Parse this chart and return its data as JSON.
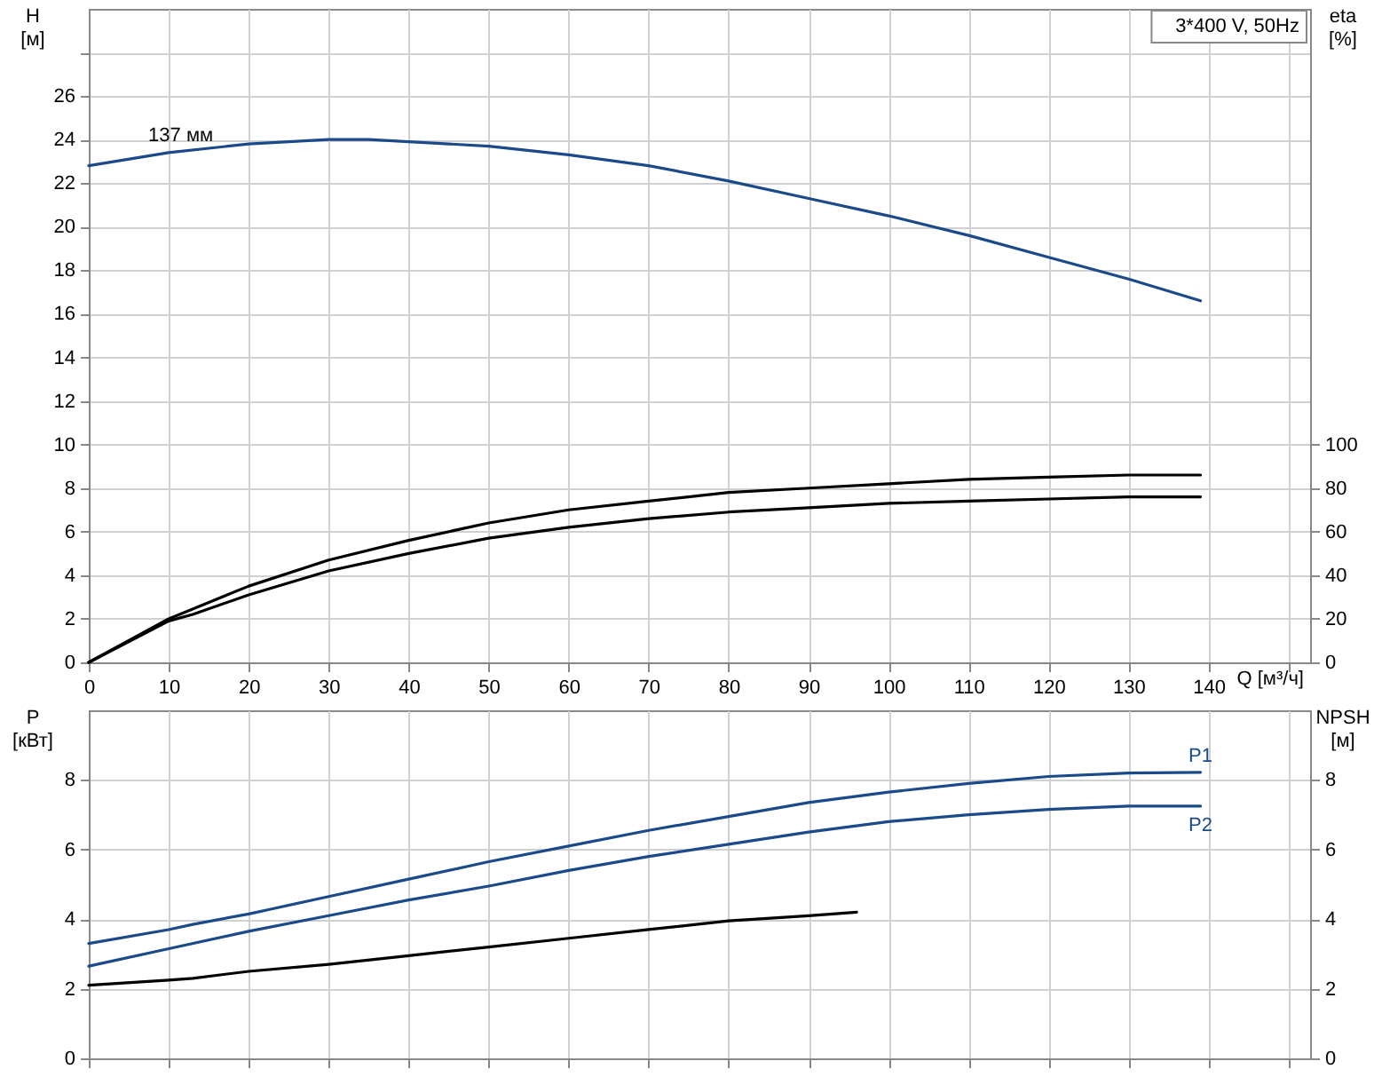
{
  "chart_data": [
    {
      "type": "line",
      "title": "3*400 V, 50Hz",
      "xlabel": "Q [м³/ч]",
      "ylabel": "H\n[м]",
      "y2label": "eta\n[%]",
      "xlim": [
        0,
        152.7
      ],
      "xticks": [
        0,
        10,
        20,
        30,
        40,
        50,
        60,
        70,
        80,
        90,
        100,
        110,
        120,
        130,
        140,
        {
          "value": 150,
          "label": null
        }
      ],
      "ylim": [
        0,
        30
      ],
      "yticks": [
        0,
        2,
        4,
        6,
        8,
        10,
        12,
        14,
        16,
        18,
        20,
        22,
        24,
        26,
        {
          "value": 28,
          "label": null
        }
      ],
      "y2lim": [
        0,
        300
      ],
      "y2ticks": [
        0,
        20,
        40,
        60,
        80,
        100
      ],
      "grid": true,
      "legend": false,
      "annotations": [
        {
          "text": "137 мм",
          "x": 11.5,
          "y": 23.5
        }
      ],
      "series": [
        {
          "color": "#1a4a8a",
          "x": [
            0,
            10,
            20,
            30,
            35,
            40,
            50,
            60,
            70,
            80,
            90,
            100,
            110,
            120,
            130,
            139
          ],
          "values": [
            22.8,
            23.4,
            23.8,
            24,
            24,
            23.9,
            23.7,
            23.3,
            22.8,
            22.1,
            21.3,
            20.5,
            19.6,
            18.6,
            17.6,
            16.6
          ]
        },
        {
          "color": "#000000",
          "axis": "y2",
          "x": [
            0,
            10,
            20,
            30,
            40,
            50,
            60,
            70,
            80,
            90,
            100,
            110,
            120,
            130,
            139
          ],
          "values": [
            0,
            20,
            35,
            47,
            56,
            64,
            70,
            74,
            78,
            80,
            82,
            84,
            85,
            86,
            86
          ]
        },
        {
          "color": "#000000",
          "axis": "y2",
          "x": [
            0,
            10,
            13,
            20,
            30,
            40,
            50,
            60,
            70,
            80,
            90,
            100,
            110,
            120,
            130,
            139
          ],
          "values": [
            0,
            19,
            22,
            31,
            42,
            50,
            57,
            62,
            66,
            69,
            71,
            73,
            74,
            75,
            76,
            76
          ]
        }
      ]
    },
    {
      "type": "line",
      "ylabel": "P\n[кВт]",
      "y2label": "NPSH\n[м]",
      "xlim": [
        0,
        152.7
      ],
      "xticks": [
        0,
        10,
        20,
        30,
        40,
        50,
        60,
        70,
        80,
        90,
        100,
        110,
        120,
        130,
        140,
        150
      ],
      "ylim": [
        0,
        10
      ],
      "yticks": [
        0,
        2,
        4,
        6,
        8
      ],
      "y2lim": [
        0,
        10
      ],
      "y2ticks": [
        0,
        2,
        4,
        6,
        8
      ],
      "grid": true,
      "legend": false,
      "tick_labels": "y",
      "series": [
        {
          "name": "P1",
          "color": "#1a4a8a",
          "x": [
            0,
            10,
            13,
            20,
            23,
            30,
            40,
            50,
            60,
            70,
            80,
            90,
            100,
            110,
            120,
            130,
            139
          ],
          "values": [
            3.3,
            3.7,
            3.85,
            4.15,
            4.3,
            4.65,
            5.15,
            5.65,
            6.1,
            6.55,
            6.95,
            7.35,
            7.65,
            7.9,
            8.1,
            8.2,
            8.22
          ]
        },
        {
          "name": "P2",
          "color": "#1a4a8a",
          "x": [
            0,
            10,
            20,
            30,
            40,
            50,
            60,
            70,
            80,
            90,
            100,
            110,
            120,
            130,
            139
          ],
          "values": [
            2.65,
            3.15,
            3.65,
            4.1,
            4.55,
            4.95,
            5.4,
            5.8,
            6.15,
            6.5,
            6.8,
            7.0,
            7.15,
            7.25,
            7.25
          ]
        },
        {
          "color": "#000000",
          "axis": "y2",
          "x": [
            0,
            10,
            13,
            20,
            30,
            40,
            50,
            60,
            70,
            80,
            90,
            96
          ],
          "values": [
            2.1,
            2.25,
            2.3,
            2.5,
            2.7,
            2.95,
            3.2,
            3.45,
            3.7,
            3.95,
            4.1,
            4.2
          ]
        }
      ]
    }
  ]
}
